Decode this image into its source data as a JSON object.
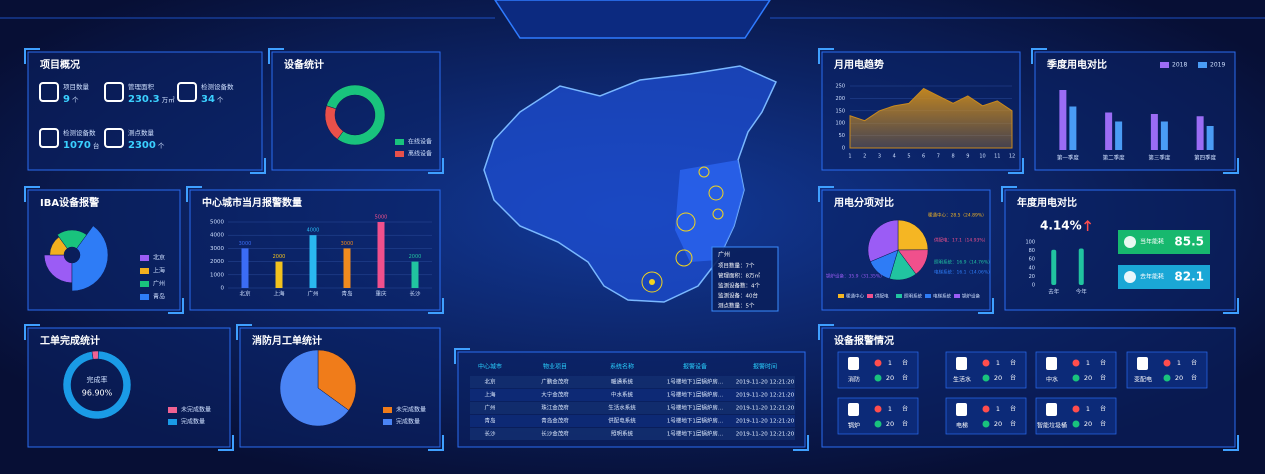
{
  "project_overview": {
    "title": "项目概况",
    "items": [
      {
        "label": "项目数量",
        "value": 9,
        "unit": "个"
      },
      {
        "label": "管理面积",
        "value": 230.3,
        "unit": "万㎡"
      },
      {
        "label": "检测设备数",
        "value": 34,
        "unit": "个"
      },
      {
        "label": "检测设备数",
        "value": 1070,
        "unit": "台"
      },
      {
        "label": "测点数量",
        "value": 2300,
        "unit": "个"
      }
    ]
  },
  "device_stats": {
    "title": "设备统计",
    "type": "donut",
    "slices": [
      {
        "name": "在线设备",
        "value": 80,
        "color": "#19c37d"
      },
      {
        "name": "离线设备",
        "value": 20,
        "color": "#e8504a"
      }
    ]
  },
  "iba_alarm": {
    "title": "IBA设备报警",
    "type": "rose",
    "slices": [
      {
        "name": "北京",
        "value": 25,
        "color": "#9b5cf5"
      },
      {
        "name": "上海",
        "value": 15,
        "color": "#f2b01e"
      },
      {
        "name": "广州",
        "value": 20,
        "color": "#19c37d"
      },
      {
        "name": "青岛",
        "value": 40,
        "color": "#2e7cf6"
      }
    ]
  },
  "city_alarm": {
    "title": "中心城市当月报警数量",
    "type": "bar",
    "categories": [
      "北京",
      "上海",
      "广州",
      "青岛",
      "重庆",
      "长沙"
    ],
    "values": [
      3000,
      2000,
      4000,
      3000,
      5000,
      2000
    ],
    "colors": [
      "#3b6cf5",
      "#f2c21e",
      "#2ab8f0",
      "#f08a1e",
      "#f0508c",
      "#21c4a0"
    ],
    "ylim": [
      0,
      5000
    ],
    "yticks": [
      0,
      1000,
      2000,
      3000,
      4000,
      5000
    ],
    "grid": true
  },
  "work_order": {
    "title": "工单完成统计",
    "type": "donut",
    "center_label": "完成率",
    "center_value": {
      "value": 96.9,
      "label": "96.90%"
    },
    "slices": [
      {
        "name": "未完成数量",
        "value": 3.1,
        "color": "#f06292"
      },
      {
        "name": "完成数量",
        "value": 96.9,
        "color": "#1a9be6"
      }
    ]
  },
  "fire_order": {
    "title": "消防月工单统计",
    "type": "pie",
    "slices": [
      {
        "name": "未完成数量",
        "value": 35,
        "color": "#f07c1a"
      },
      {
        "name": "完成数量",
        "value": 65,
        "color": "#4a84f5"
      }
    ]
  },
  "map": {
    "tooltip": {
      "city": "广州",
      "rows": [
        "项目数量：7个",
        "管理面积：8万㎡",
        "监测设备数：4个",
        "监测设备：40台",
        "测点数量：5个"
      ]
    }
  },
  "alarm_table": {
    "columns": [
      "中心城市",
      "物业项目",
      "系统名称",
      "报警设备",
      "报警时间"
    ],
    "rows": [
      [
        "北京",
        "广鹏金茂府",
        "暖通系统",
        "1号楼地下1层锅炉房...",
        "2019-11-20 12:21:20"
      ],
      [
        "上海",
        "大宁金茂府",
        "中水系统",
        "1号楼地下1层锅炉房...",
        "2019-11-20 12:21:20"
      ],
      [
        "广州",
        "珠江金茂府",
        "生活水系统",
        "1号楼地下1层锅炉房...",
        "2019-11-20 12:21:20"
      ],
      [
        "青岛",
        "青岛金茂府",
        "供配电系统",
        "1号楼地下1层锅炉房...",
        "2019-11-20 12:21:20"
      ],
      [
        "长沙",
        "长沙金茂府",
        "照明系统",
        "1号楼地下1层锅炉房...",
        "2019-11-20 12:21:20"
      ]
    ]
  },
  "monthly_power": {
    "title": "月用电趋势",
    "type": "area",
    "color": "#c98a1e",
    "x": [
      1,
      2,
      3,
      4,
      5,
      6,
      7,
      8,
      9,
      10,
      11,
      12
    ],
    "values": [
      130,
      110,
      150,
      170,
      180,
      240,
      210,
      180,
      210,
      170,
      190,
      150
    ],
    "xlim": [
      1,
      12
    ],
    "xticks": [
      1,
      2,
      3,
      4,
      5,
      6,
      7,
      8,
      9,
      10,
      11,
      12
    ],
    "ylim": [
      0,
      250
    ],
    "yticks": [
      0,
      50,
      100,
      150,
      200,
      250
    ],
    "grid": true
  },
  "quarterly_power": {
    "title": "季度用电对比",
    "type": "bar",
    "categories": [
      "第一季度",
      "第二季度",
      "第三季度",
      "第四季度"
    ],
    "series": [
      {
        "name": "2018",
        "color": "#9b6cf5",
        "values": [
          80,
          50,
          48,
          45
        ]
      },
      {
        "name": "2019",
        "color": "#4a9cf5",
        "values": [
          58,
          38,
          38,
          32
        ]
      }
    ]
  },
  "power_breakdown": {
    "title": "用电分项对比",
    "type": "pie",
    "slices": [
      {
        "name": "暖通中心",
        "value": 28.5,
        "label": "暖通中心：28.5（24.89%）",
        "color": "#f5b623"
      },
      {
        "name": "供配电",
        "value": 17.1,
        "label": "供配电：17.1（14.93%）",
        "color": "#f0508c"
      },
      {
        "name": "照明系统",
        "value": 16.9,
        "label": "照明系统：16.9（14.76%）",
        "color": "#21c4a0"
      },
      {
        "name": "电梯系统",
        "value": 16.1,
        "label": "电梯系统：16.1（14.06%）",
        "color": "#2e7cf6"
      },
      {
        "name": "锅炉设备",
        "value": 35.9,
        "label": "锅炉设备：35.9（31.35%）",
        "color": "#9b5cf5"
      }
    ]
  },
  "annual_power": {
    "title": "年度用电对比",
    "change": {
      "value": 4.14,
      "label": "4.14%"
    },
    "type": "bar",
    "categories": [
      "去年",
      "今年"
    ],
    "values": [
      82,
      85
    ],
    "color": "#21c4a0",
    "ylim": [
      0,
      100
    ],
    "yticks": [
      0,
      20,
      40,
      60,
      80,
      100
    ],
    "cards": [
      {
        "label": "当年能耗",
        "value": 85.5,
        "color": "#17b86e"
      },
      {
        "label": "去年能耗",
        "value": 82.1,
        "color": "#1aa7d6"
      }
    ]
  },
  "device_alarm": {
    "title": "设备报警情况",
    "unit": "台",
    "items": [
      {
        "name": "消防",
        "alarm": 1,
        "normal": 20
      },
      {
        "name": "生活水",
        "alarm": 1,
        "normal": 20
      },
      {
        "name": "中水",
        "alarm": 1,
        "normal": 20
      },
      {
        "name": "变配电",
        "alarm": 1,
        "normal": 20
      },
      {
        "name": "锅炉",
        "alarm": 1,
        "normal": 20
      },
      {
        "name": "电梯",
        "alarm": 1,
        "normal": 20
      },
      {
        "name": "智能垃圾桶",
        "alarm": 1,
        "normal": 20
      }
    ]
  }
}
